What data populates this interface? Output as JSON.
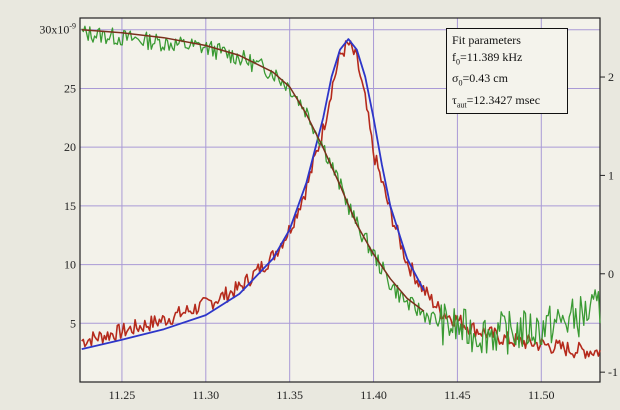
{
  "chart_data": {
    "type": "line",
    "x_range": [
      11.225,
      11.535
    ],
    "y_left_range": [
      0,
      31
    ],
    "y_right_range": [
      -1.1,
      2.6
    ],
    "x_ticks": [
      "11.25",
      "11.30",
      "11.35",
      "11.40",
      "11.45",
      "11.50"
    ],
    "x_tick_values": [
      11.25,
      11.3,
      11.35,
      11.4,
      11.45,
      11.5
    ],
    "y_left_ticks": [
      "5",
      "10",
      "15",
      "20",
      "25",
      "30x10"
    ],
    "y_left_exponent": "-9",
    "y_left_tick_values": [
      5,
      10,
      15,
      20,
      25,
      30
    ],
    "y_right_ticks": [
      "-1",
      "0",
      "1",
      "2"
    ],
    "y_right_tick_values": [
      -1,
      0,
      1,
      2
    ],
    "grid": true,
    "annotation": {
      "title": "Fit parameters",
      "line1": "=11.389 kHz",
      "line2": "=0.43 cm",
      "line3": "=12.3427 msec",
      "sym1": "f",
      "sub1": "0",
      "sym2": "σ",
      "sub2": "0",
      "sym3": "τ",
      "sub3": "aut"
    },
    "series": [
      {
        "color": "#b52a1c",
        "axis": "left",
        "x": [
          11.226,
          11.25,
          11.275,
          11.3,
          11.32,
          11.34,
          11.35,
          11.36,
          11.37,
          11.375,
          11.38,
          11.385,
          11.39,
          11.395,
          11.4,
          11.41,
          11.42,
          11.43,
          11.44,
          11.46,
          11.48,
          11.5,
          11.52,
          11.535
        ],
        "y": [
          3.5,
          4.3,
          5.3,
          6.6,
          8.0,
          10.7,
          13.0,
          16.5,
          21.5,
          25.0,
          27.8,
          28.8,
          27.5,
          24.0,
          19.5,
          14.5,
          10.2,
          7.8,
          6.0,
          4.5,
          3.6,
          3.2,
          2.7,
          2.6
        ]
      },
      {
        "color": "#2d36c9",
        "axis": "left",
        "x": [
          11.226,
          11.25,
          11.275,
          11.3,
          11.32,
          11.34,
          11.35,
          11.36,
          11.37,
          11.375,
          11.38,
          11.385,
          11.39,
          11.395,
          11.4,
          11.405,
          11.41,
          11.42,
          11.43
        ],
        "y": [
          2.8,
          3.6,
          4.5,
          5.7,
          7.5,
          10.5,
          13.0,
          17.0,
          22.5,
          26.0,
          28.3,
          29.2,
          28.3,
          26.0,
          22.5,
          18.5,
          15.0,
          10.5,
          7.8
        ]
      },
      {
        "color": "#3a9a33",
        "axis": "right",
        "x": [
          11.226,
          11.25,
          11.275,
          11.3,
          11.32,
          11.34,
          11.35,
          11.36,
          11.37,
          11.38,
          11.385,
          11.39,
          11.4,
          11.41,
          11.42,
          11.43,
          11.44,
          11.46,
          11.48,
          11.5,
          11.52,
          11.535
        ],
        "y": [
          2.45,
          2.4,
          2.35,
          2.3,
          2.2,
          2.05,
          1.9,
          1.65,
          1.3,
          0.9,
          0.7,
          0.5,
          0.2,
          -0.1,
          -0.3,
          -0.4,
          -0.5,
          -0.6,
          -0.6,
          -0.55,
          -0.45,
          -0.35
        ]
      },
      {
        "color": "#7a2f1c",
        "axis": "right",
        "x": [
          11.226,
          11.25,
          11.275,
          11.3,
          11.32,
          11.34,
          11.35,
          11.36,
          11.37,
          11.38,
          11.385,
          11.39,
          11.4,
          11.41,
          11.42,
          11.43
        ],
        "y": [
          2.48,
          2.45,
          2.4,
          2.32,
          2.22,
          2.05,
          1.9,
          1.62,
          1.28,
          0.9,
          0.7,
          0.5,
          0.2,
          -0.05,
          -0.25,
          -0.38
        ]
      }
    ]
  }
}
